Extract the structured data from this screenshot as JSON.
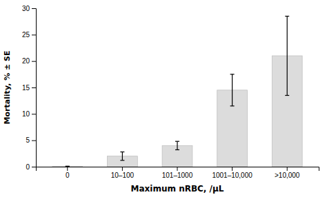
{
  "chart_data": {
    "type": "bar",
    "categories": [
      "0",
      "10–100",
      "101–1000",
      "1001–10,000",
      ">10,000"
    ],
    "values": [
      0.05,
      2.0,
      4.0,
      14.5,
      21.0
    ],
    "errors": [
      0.05,
      0.8,
      0.8,
      3.0,
      7.5
    ],
    "color": "#dcdcdc",
    "xlabel": "Maximum nRBC, /μL",
    "ylabel": "Mortality, % ± SE",
    "ylim": [
      0,
      30
    ],
    "yticks": [
      0,
      5,
      10,
      15,
      20,
      25,
      30
    ],
    "grid": false
  }
}
